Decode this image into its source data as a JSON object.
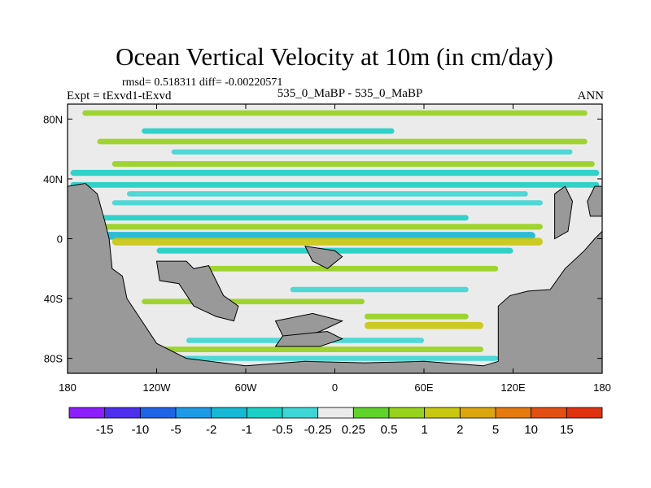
{
  "chart_data": {
    "type": "heatmap",
    "title": "Ocean Vertical Velocity at 10m (in cm/day)",
    "stats_label": "rmsd= 0.518311 diff= -0.00220571",
    "left_string": "Expt = tExvd1-tExvd",
    "center_string": "535_0_MaBP - 535_0_MaBP",
    "right_string": "ANN",
    "x_ticks": [
      "180",
      "120W",
      "60W",
      "0",
      "60E",
      "120E",
      "180"
    ],
    "x_values": [
      -180,
      -120,
      -60,
      0,
      60,
      120,
      180
    ],
    "y_ticks": [
      "80N",
      "40N",
      "0",
      "40S",
      "80S"
    ],
    "y_values": [
      80,
      40,
      0,
      -40,
      -80
    ],
    "xlim": [
      -180,
      180
    ],
    "ylim": [
      -90,
      90
    ],
    "colorbar": {
      "levels": [
        "-15",
        "-10",
        "-5",
        "-2",
        "-1",
        "-0.5",
        "-0.25",
        "0.25",
        "0.5",
        "1",
        "2",
        "5",
        "10",
        "15"
      ],
      "colors": [
        "#8c1eff",
        "#4e2ff0",
        "#1f64e6",
        "#1e9be6",
        "#16b8d3",
        "#1ccfc4",
        "#3dd6d4",
        "#ebebeb",
        "#5fd32a",
        "#97d21c",
        "#c8c80e",
        "#dba60e",
        "#e57a0e",
        "#e34f12",
        "#e0320f"
      ]
    },
    "land_color": "#999999",
    "bands": [
      {
        "lat": 84,
        "lon": [
          -170,
          170
        ],
        "value": 0.6
      },
      {
        "lat": 72,
        "lon": [
          -130,
          40
        ],
        "value": -0.6
      },
      {
        "lat": 65,
        "lon": [
          -160,
          170
        ],
        "value": 0.6
      },
      {
        "lat": 58,
        "lon": [
          -110,
          160
        ],
        "value": -0.4
      },
      {
        "lat": 50,
        "lon": [
          -150,
          175
        ],
        "value": 0.6
      },
      {
        "lat": 44,
        "lon": [
          -178,
          178
        ],
        "value": -0.8
      },
      {
        "lat": 36,
        "lon": [
          -178,
          178
        ],
        "value": -0.6
      },
      {
        "lat": 30,
        "lon": [
          -140,
          130
        ],
        "value": -0.5
      },
      {
        "lat": 24,
        "lon": [
          -150,
          140
        ],
        "value": -0.4
      },
      {
        "lat": 14,
        "lon": [
          -165,
          90
        ],
        "value": -0.6
      },
      {
        "lat": 8,
        "lon": [
          -160,
          140
        ],
        "value": 0.7
      },
      {
        "lat": 2,
        "lon": [
          -155,
          135
        ],
        "value": -1.5
      },
      {
        "lat": -2,
        "lon": [
          -150,
          140
        ],
        "value": 1.5
      },
      {
        "lat": -8,
        "lon": [
          -120,
          120
        ],
        "value": -0.7
      },
      {
        "lat": -20,
        "lon": [
          -90,
          110
        ],
        "value": 0.6
      },
      {
        "lat": -34,
        "lon": [
          -30,
          90
        ],
        "value": -0.5
      },
      {
        "lat": -42,
        "lon": [
          -130,
          20
        ],
        "value": 0.6
      },
      {
        "lat": -52,
        "lon": [
          20,
          90
        ],
        "value": 0.7
      },
      {
        "lat": -58,
        "lon": [
          20,
          100
        ],
        "value": 1.2
      },
      {
        "lat": -68,
        "lon": [
          -100,
          60
        ],
        "value": -0.5
      },
      {
        "lat": -74,
        "lon": [
          -140,
          100
        ],
        "value": 0.6
      },
      {
        "lat": -80,
        "lon": [
          -110,
          110
        ],
        "value": -0.4
      }
    ]
  }
}
